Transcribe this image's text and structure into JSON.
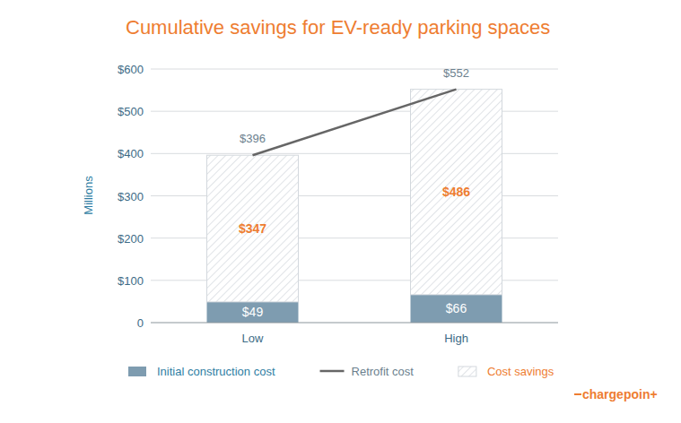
{
  "chart_data": {
    "type": "bar",
    "title": "Cumulative savings for EV-ready parking spaces",
    "y_label": "Millions",
    "logo": "chargepoin+",
    "categories": [
      "Low",
      "High"
    ],
    "stacked": true,
    "data_labels": true,
    "grid": true,
    "ylim": [
      0,
      600
    ],
    "yticks": [
      0,
      {
        "value": 100,
        "label": "$100"
      },
      {
        "value": 200,
        "label": "$200"
      },
      {
        "value": 300,
        "label": "$300"
      },
      {
        "value": 400,
        "label": "$400"
      },
      {
        "value": 500,
        "label": "$500"
      },
      {
        "value": 600,
        "label": "$600"
      }
    ],
    "series": [
      {
        "name": "Initial construction cost",
        "type": "bar",
        "color": "#7e9cb0",
        "values": [
          49,
          66
        ],
        "value_labels": [
          "$49",
          "$66"
        ]
      },
      {
        "name": "Retrofit cost",
        "type": "line",
        "color": "#666666",
        "line_style": "solid",
        "values": [
          396,
          552
        ],
        "value_labels": [
          "$396",
          "$552"
        ]
      },
      {
        "name": "Cost savings",
        "type": "bar",
        "color": "#d3d8dd",
        "values": [
          347,
          486
        ],
        "value_labels": [
          "$347",
          "$486"
        ]
      }
    ]
  }
}
